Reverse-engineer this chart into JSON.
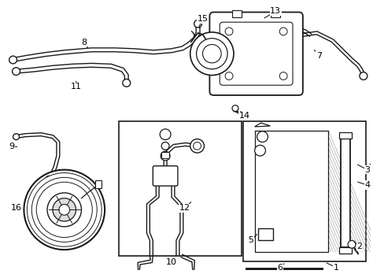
{
  "background_color": "#ffffff",
  "line_color": "#1a1a1a",
  "label_color": "#000000",
  "figsize": [
    4.74,
    3.48
  ],
  "dpi": 100,
  "gray": "#888888",
  "light_gray": "#cccccc"
}
